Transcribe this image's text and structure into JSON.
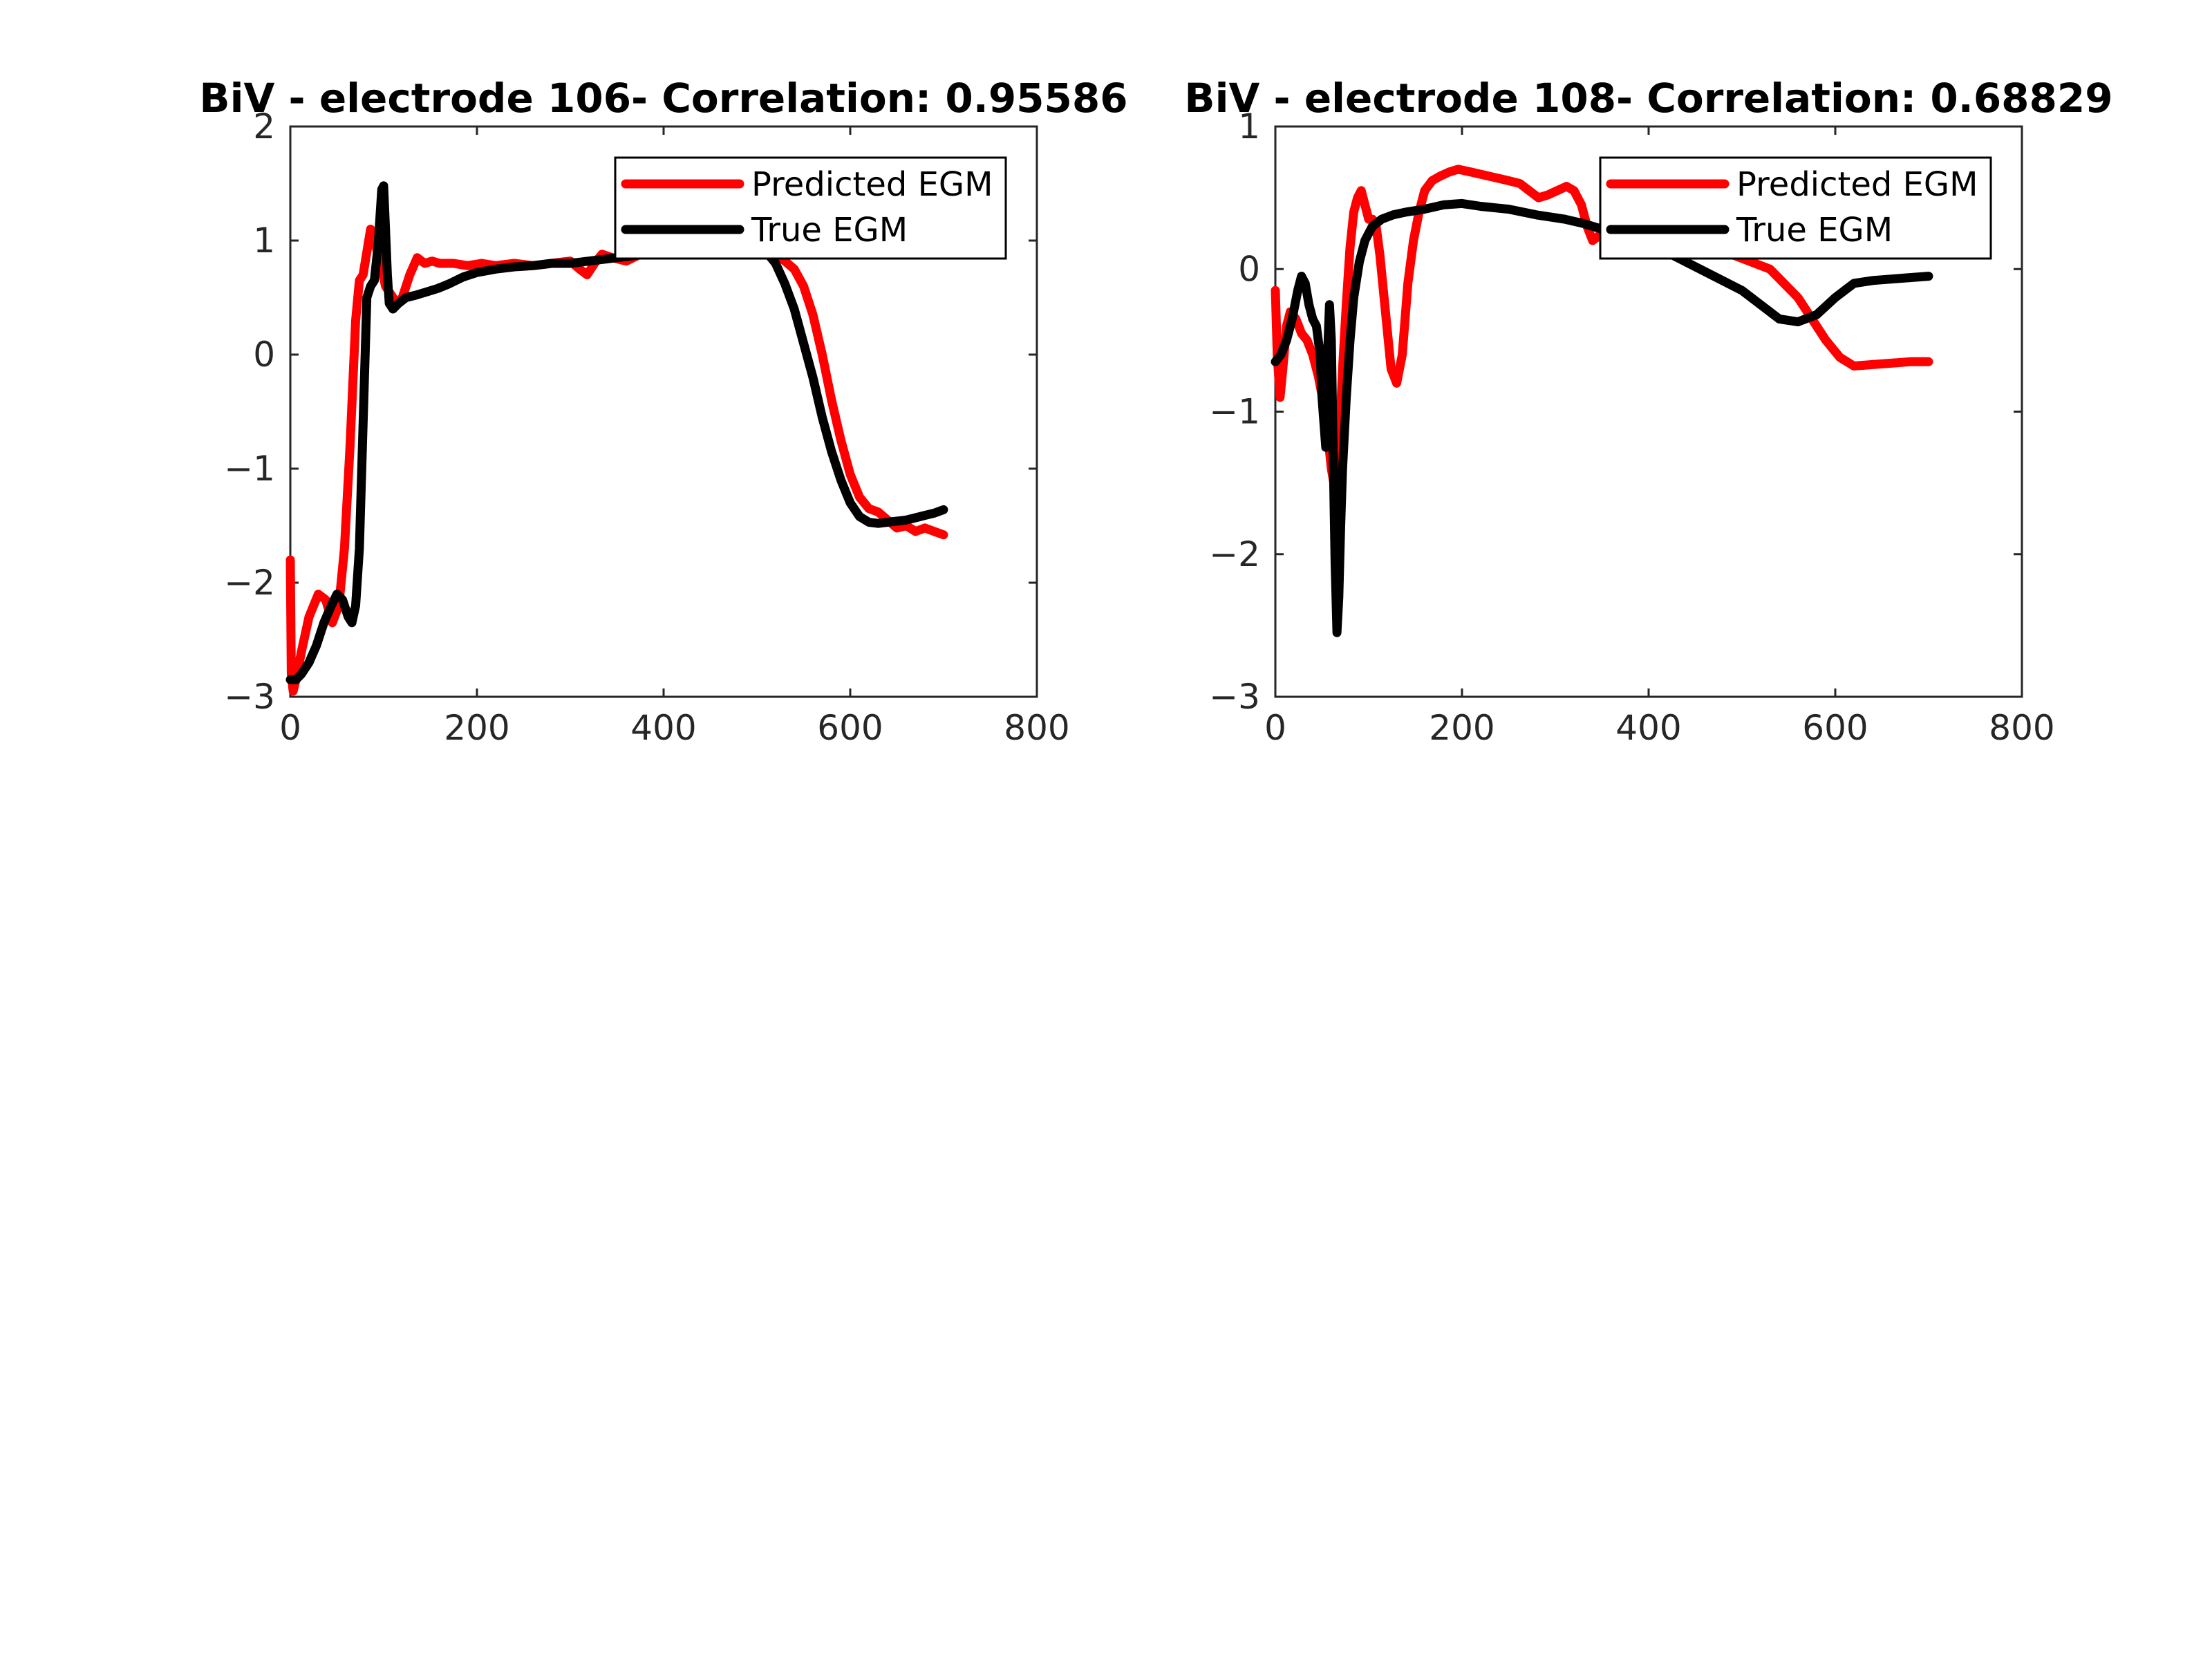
{
  "chart_data": [
    {
      "type": "line",
      "title": "BiV - electrode 106- Correlation: 0.95586",
      "xlabel": "",
      "ylabel": "",
      "xlim": [
        0,
        800
      ],
      "ylim": [
        -3,
        2
      ],
      "xticks": [
        0,
        200,
        400,
        600,
        800
      ],
      "yticks": [
        -3,
        -2,
        -1,
        0,
        1,
        2
      ],
      "xtick_labels": [
        "0",
        "200",
        "400",
        "600",
        "800"
      ],
      "ytick_labels": [
        "−3",
        "−2",
        "−1",
        "0",
        "1",
        "2"
      ],
      "legend_position": "top-right",
      "series": [
        {
          "name": "Predicted EGM",
          "color": "#ff0000",
          "x": [
            0,
            1,
            3,
            6,
            12,
            20,
            30,
            38,
            45,
            52,
            58,
            64,
            70,
            74,
            78,
            82,
            86,
            90,
            94,
            98,
            102,
            106,
            110,
            114,
            120,
            128,
            136,
            144,
            152,
            160,
            175,
            190,
            205,
            220,
            240,
            260,
            280,
            300,
            310,
            318,
            326,
            334,
            345,
            360,
            375,
            390,
            410,
            430,
            450,
            470,
            490,
            510,
            520,
            530,
            540,
            550,
            560,
            570,
            580,
            590,
            600,
            610,
            620,
            630,
            640,
            650,
            660,
            670,
            680,
            690,
            700
          ],
          "y": [
            -1.8,
            -2.8,
            -2.95,
            -2.85,
            -2.6,
            -2.3,
            -2.1,
            -2.15,
            -2.35,
            -2.2,
            -1.7,
            -0.8,
            0.3,
            0.65,
            0.7,
            0.9,
            1.1,
            1.05,
            0.85,
            0.75,
            0.6,
            0.55,
            0.5,
            0.45,
            0.5,
            0.7,
            0.85,
            0.8,
            0.82,
            0.8,
            0.8,
            0.78,
            0.8,
            0.78,
            0.8,
            0.78,
            0.8,
            0.82,
            0.75,
            0.7,
            0.8,
            0.88,
            0.85,
            0.82,
            0.88,
            0.9,
            0.92,
            0.94,
            0.94,
            0.92,
            0.92,
            0.9,
            0.88,
            0.82,
            0.75,
            0.6,
            0.35,
            0.0,
            -0.4,
            -0.75,
            -1.05,
            -1.25,
            -1.35,
            -1.38,
            -1.45,
            -1.52,
            -1.5,
            -1.55,
            -1.52,
            -1.55,
            -1.58
          ]
        },
        {
          "name": "True EGM",
          "color": "#000000",
          "x": [
            0,
            6,
            12,
            20,
            28,
            36,
            44,
            50,
            56,
            62,
            66,
            70,
            74,
            78,
            82,
            86,
            90,
            94,
            98,
            100,
            102,
            104,
            106,
            110,
            116,
            124,
            134,
            146,
            158,
            170,
            185,
            200,
            220,
            240,
            260,
            280,
            300,
            320,
            340,
            360,
            380,
            400,
            420,
            440,
            460,
            480,
            500,
            510,
            520,
            530,
            540,
            550,
            560,
            570,
            580,
            590,
            600,
            610,
            620,
            630,
            640,
            650,
            660,
            670,
            680,
            690,
            700
          ],
          "y": [
            -2.85,
            -2.85,
            -2.8,
            -2.7,
            -2.55,
            -2.35,
            -2.2,
            -2.1,
            -2.15,
            -2.3,
            -2.35,
            -2.2,
            -1.7,
            -0.6,
            0.5,
            0.6,
            0.65,
            0.95,
            1.45,
            1.48,
            1.1,
            0.7,
            0.45,
            0.4,
            0.45,
            0.5,
            0.52,
            0.55,
            0.58,
            0.62,
            0.68,
            0.72,
            0.75,
            0.77,
            0.78,
            0.8,
            0.8,
            0.82,
            0.84,
            0.86,
            0.88,
            0.9,
            0.92,
            0.93,
            0.94,
            0.94,
            0.94,
            0.9,
            0.8,
            0.62,
            0.4,
            0.1,
            -0.2,
            -0.55,
            -0.85,
            -1.1,
            -1.3,
            -1.42,
            -1.47,
            -1.48,
            -1.47,
            -1.46,
            -1.45,
            -1.43,
            -1.41,
            -1.39,
            -1.36
          ]
        }
      ]
    },
    {
      "type": "line",
      "title": "BiV - electrode 108- Correlation: 0.68829",
      "xlabel": "",
      "ylabel": "",
      "xlim": [
        0,
        800
      ],
      "ylim": [
        -3,
        1
      ],
      "xticks": [
        0,
        200,
        400,
        600,
        800
      ],
      "yticks": [
        -3,
        -2,
        -1,
        0,
        1
      ],
      "xtick_labels": [
        "0",
        "200",
        "400",
        "600",
        "800"
      ],
      "ytick_labels": [
        "−3",
        "−2",
        "−1",
        "0",
        "1"
      ],
      "legend_position": "top-right",
      "series": [
        {
          "name": "Predicted EGM",
          "color": "#ff0000",
          "x": [
            0,
            2,
            5,
            8,
            12,
            16,
            22,
            28,
            34,
            40,
            46,
            52,
            56,
            60,
            64,
            68,
            72,
            76,
            80,
            84,
            88,
            92,
            96,
            100,
            104,
            108,
            112,
            118,
            124,
            130,
            136,
            142,
            148,
            154,
            160,
            168,
            176,
            186,
            196,
            210,
            230,
            250,
            262,
            272,
            282,
            292,
            302,
            312,
            320,
            328,
            334,
            340,
            350,
            370,
            390,
            410,
            430,
            450,
            470,
            490,
            510,
            530,
            545,
            560,
            575,
            590,
            605,
            620,
            640,
            660,
            680,
            700
          ],
          "y": [
            -0.15,
            -0.6,
            -0.9,
            -0.7,
            -0.4,
            -0.3,
            -0.35,
            -0.45,
            -0.5,
            -0.6,
            -0.75,
            -0.95,
            -1.15,
            -1.4,
            -1.55,
            -1.3,
            -0.7,
            -0.25,
            0.15,
            0.4,
            0.5,
            0.55,
            0.45,
            0.35,
            0.35,
            0.3,
            0.1,
            -0.3,
            -0.7,
            -0.8,
            -0.6,
            -0.1,
            0.2,
            0.4,
            0.55,
            0.62,
            0.65,
            0.68,
            0.7,
            0.68,
            0.65,
            0.62,
            0.6,
            0.55,
            0.5,
            0.52,
            0.55,
            0.58,
            0.55,
            0.45,
            0.3,
            0.2,
            0.25,
            0.3,
            0.3,
            0.28,
            0.25,
            0.2,
            0.15,
            0.1,
            0.05,
            0.0,
            -0.1,
            -0.2,
            -0.35,
            -0.5,
            -0.62,
            -0.68,
            -0.67,
            -0.66,
            -0.65,
            -0.65
          ]
        },
        {
          "name": "True EGM",
          "color": "#000000",
          "x": [
            0,
            6,
            12,
            18,
            24,
            28,
            32,
            36,
            40,
            44,
            48,
            50,
            54,
            56,
            58,
            60,
            62,
            64,
            66,
            68,
            70,
            72,
            76,
            80,
            84,
            90,
            96,
            104,
            114,
            126,
            140,
            160,
            180,
            200,
            220,
            250,
            280,
            310,
            330,
            350,
            380,
            410,
            440,
            470,
            500,
            520,
            540,
            560,
            580,
            600,
            620,
            640,
            660,
            680,
            700
          ],
          "y": [
            -0.65,
            -0.6,
            -0.5,
            -0.35,
            -0.15,
            -0.05,
            -0.1,
            -0.25,
            -0.35,
            -0.4,
            -0.6,
            -0.9,
            -1.25,
            -0.6,
            -0.25,
            -0.5,
            -1.3,
            -2.05,
            -2.55,
            -2.3,
            -1.8,
            -1.4,
            -0.9,
            -0.5,
            -0.2,
            0.05,
            0.2,
            0.3,
            0.35,
            0.38,
            0.4,
            0.42,
            0.45,
            0.46,
            0.44,
            0.42,
            0.38,
            0.35,
            0.32,
            0.28,
            0.25,
            0.15,
            0.05,
            -0.05,
            -0.15,
            -0.25,
            -0.35,
            -0.37,
            -0.32,
            -0.2,
            -0.1,
            -0.08,
            -0.07,
            -0.06,
            -0.05
          ]
        }
      ]
    }
  ]
}
